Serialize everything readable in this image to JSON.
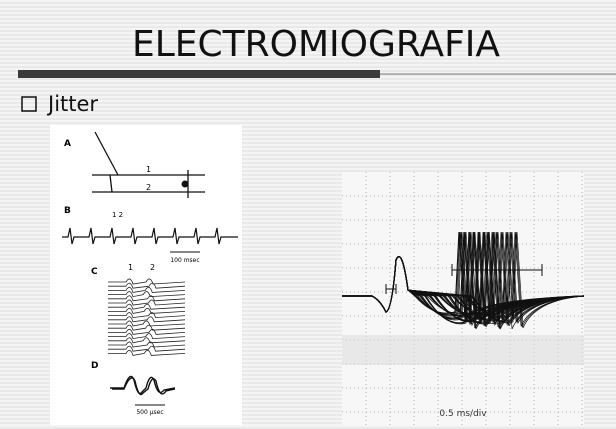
{
  "title": "ELECTROMIOGRAFIA",
  "bullets": [
    "Jitter"
  ],
  "figure_left": {
    "panel_labels": [
      "A",
      "B",
      "C",
      "D"
    ],
    "annotations": [
      "1",
      "2",
      "1 2",
      "100 msec",
      "1",
      "2",
      "500 µsec"
    ]
  },
  "figure_right": {
    "scale_label": "0.5 ms/div"
  }
}
